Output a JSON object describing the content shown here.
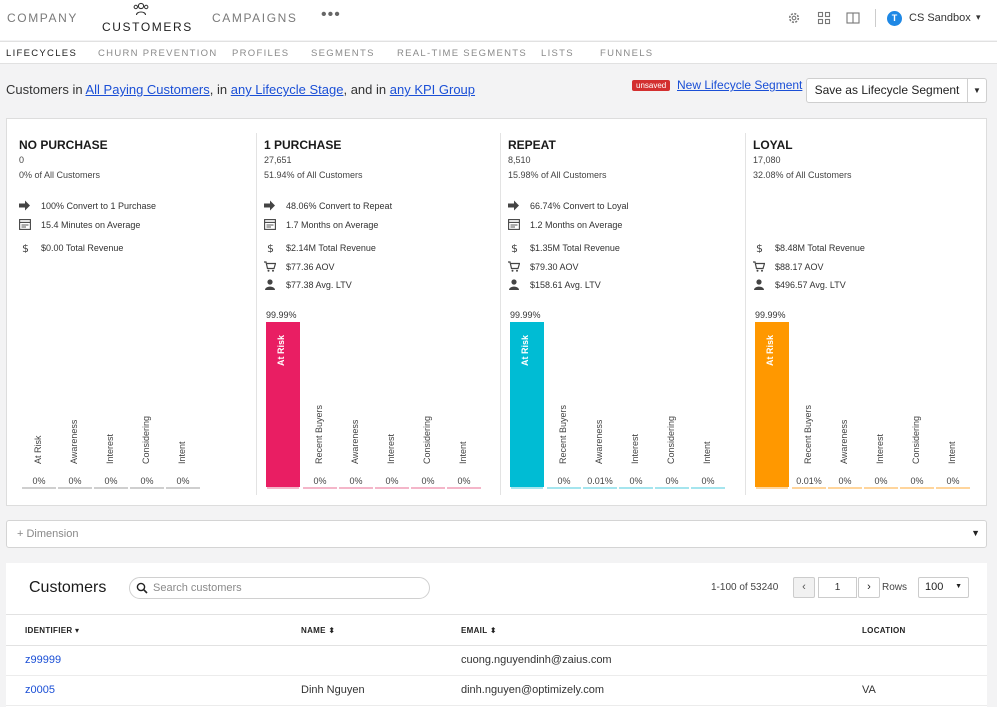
{
  "topnav": {
    "company": "COMPANY",
    "customers": "CUSTOMERS",
    "campaigns": "CAMPAIGNS",
    "more": "•••",
    "account_initial": "T",
    "account_name": "CS Sandbox"
  },
  "subnav": [
    "LIFECYCLES",
    "CHURN PREVENTION",
    "PROFILES",
    "SEGMENTS",
    "REAL-TIME SEGMENTS",
    "LISTS",
    "FUNNELS"
  ],
  "filter": {
    "prefix": "Customers in",
    "segment": "All Paying Customers",
    "in1": ", in",
    "stage": "any Lifecycle Stage",
    "in2": ", and in",
    "kpi": "any KPI Group",
    "unsaved_badge": "unsaved",
    "new_segment": "New Lifecycle Segment",
    "save_button": "Save as Lifecycle Segment"
  },
  "lifecycle": [
    {
      "title": "NO PURCHASE",
      "count": "0",
      "pct": "0% of All Customers",
      "stats": [
        {
          "icon": "arrow-right-icon",
          "text": "100% Convert to 1 Purchase"
        },
        {
          "icon": "calendar-icon",
          "text": "15.4 Minutes on Average"
        },
        {
          "icon": "dollar-icon",
          "text": "$0.00 Total Revenue"
        }
      ],
      "bar_pct": "",
      "bar_label": "",
      "bar_color": "",
      "stages": [
        {
          "label": "At Risk",
          "value": "0%"
        },
        {
          "label": "Awareness",
          "value": "0%"
        },
        {
          "label": "Interest",
          "value": "0%"
        },
        {
          "label": "Considering",
          "value": "0%"
        },
        {
          "label": "Intent",
          "value": "0%"
        }
      ],
      "line_color": "#cfcfcf"
    },
    {
      "title": "1 PURCHASE",
      "count": "27,651",
      "pct": "51.94% of All Customers",
      "stats": [
        {
          "icon": "arrow-right-icon",
          "text": "48.06% Convert to Repeat"
        },
        {
          "icon": "calendar-icon",
          "text": "1.7 Months on Average"
        },
        {
          "icon": "dollar-icon",
          "text": "$2.14M Total Revenue"
        },
        {
          "icon": "cart-icon",
          "text": "$77.36 AOV"
        },
        {
          "icon": "person-icon",
          "text": "$77.38 Avg. LTV"
        }
      ],
      "bar_pct": "99.99%",
      "bar_label": "At Risk",
      "bar_color": "#e91e63",
      "stages": [
        {
          "label": "Recent Buyers",
          "value": "0%"
        },
        {
          "label": "Awareness",
          "value": "0%"
        },
        {
          "label": "Interest",
          "value": "0%"
        },
        {
          "label": "Considering",
          "value": "0%"
        },
        {
          "label": "Intent",
          "value": "0%"
        }
      ],
      "line_color": "#f4b6c9"
    },
    {
      "title": "REPEAT",
      "count": "8,510",
      "pct": "15.98% of All Customers",
      "stats": [
        {
          "icon": "arrow-right-icon",
          "text": "66.74% Convert to Loyal"
        },
        {
          "icon": "calendar-icon",
          "text": "1.2 Months on Average"
        },
        {
          "icon": "dollar-icon",
          "text": "$1.35M Total Revenue"
        },
        {
          "icon": "cart-icon",
          "text": "$79.30 AOV"
        },
        {
          "icon": "person-icon",
          "text": "$158.61 Avg. LTV"
        }
      ],
      "bar_pct": "99.99%",
      "bar_label": "At Risk",
      "bar_color": "#00bcd4",
      "stages": [
        {
          "label": "Recent Buyers",
          "value": "0%"
        },
        {
          "label": "Awareness",
          "value": "0.01%"
        },
        {
          "label": "Interest",
          "value": "0%"
        },
        {
          "label": "Considering",
          "value": "0%"
        },
        {
          "label": "Intent",
          "value": "0%"
        }
      ],
      "line_color": "#a5e5ee"
    },
    {
      "title": "LOYAL",
      "count": "17,080",
      "pct": "32.08% of All Customers",
      "stats": [
        {
          "icon": "dollar-icon",
          "text": "$8.48M Total Revenue"
        },
        {
          "icon": "cart-icon",
          "text": "$88.17 AOV"
        },
        {
          "icon": "person-icon",
          "text": "$496.57 Avg. LTV"
        }
      ],
      "bar_pct": "99.99%",
      "bar_label": "At Risk",
      "bar_color": "#ff9800",
      "stages": [
        {
          "label": "Recent Buyers",
          "value": "0.01%"
        },
        {
          "label": "Awareness",
          "value": "0%"
        },
        {
          "label": "Interest",
          "value": "0%"
        },
        {
          "label": "Considering",
          "value": "0%"
        },
        {
          "label": "Intent",
          "value": "0%"
        }
      ],
      "line_color": "#ffd59c"
    }
  ],
  "dimension": {
    "label": "+ Dimension"
  },
  "customers": {
    "title": "Customers",
    "search_placeholder": "Search customers",
    "range": "1-100 of 53240",
    "page": "1",
    "rows_label": "Rows",
    "rows_value": "100",
    "columns": [
      "IDENTIFIER ▾",
      "NAME ⬍",
      "EMAIL ⬍",
      "LOCATION"
    ],
    "rows": [
      {
        "identifier": "z99999",
        "name": "",
        "email": "cuong.nguyendinh@zaius.com",
        "location": ""
      },
      {
        "identifier": "z0005",
        "name": "Dinh Nguyen",
        "email": "dinh.nguyen@optimizely.com",
        "location": "VA"
      }
    ]
  }
}
